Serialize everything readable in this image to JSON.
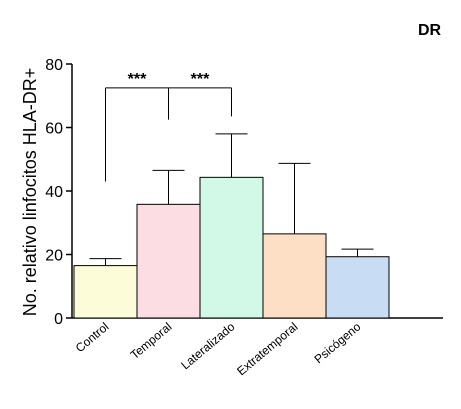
{
  "chart_data": {
    "type": "bar",
    "title": "DR",
    "ylabel": "No. relativo linfocitos HLA-DR+",
    "ylim": [
      0,
      80
    ],
    "yticks": [
      0,
      20,
      40,
      60,
      80
    ],
    "categories": [
      "Control",
      "Temporal",
      "Lateralizado",
      "Extratemporal",
      "Psicógeno"
    ],
    "values": [
      16.5,
      35.8,
      44.3,
      26.5,
      19.3
    ],
    "errors": [
      2.2,
      10.7,
      13.7,
      22.2,
      2.4
    ],
    "colors": [
      "#fcfcd8",
      "#fcdde3",
      "#d2f8e8",
      "#fcdfc4",
      "#c8dcf4"
    ],
    "grid": false,
    "significance": [
      {
        "label": "***",
        "from": "Control",
        "to": "Lateralizado",
        "pivot": "Temporal"
      }
    ],
    "sig_labels": [
      "***",
      "***"
    ]
  }
}
